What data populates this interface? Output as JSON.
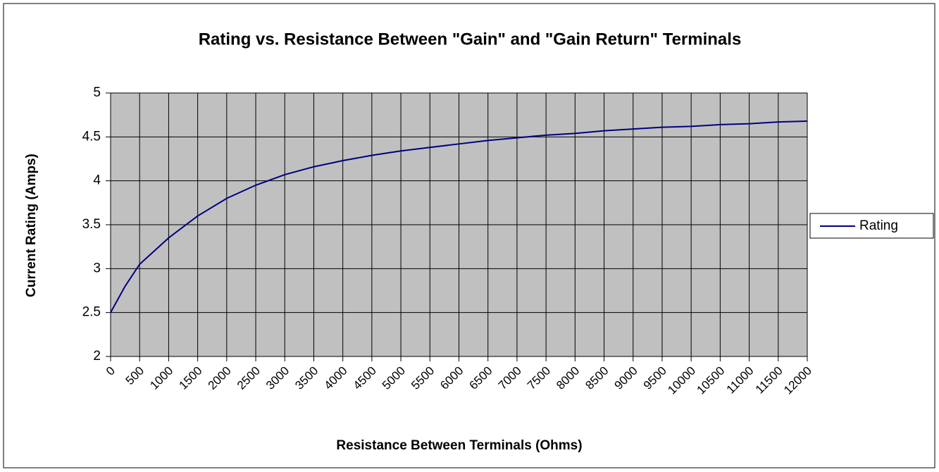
{
  "chart_data": {
    "type": "line",
    "title": "Rating vs. Resistance Between \"Gain\" and \"Gain Return\" Terminals",
    "xlabel": "Resistance Between Terminals (Ohms)",
    "ylabel": "Current Rating (Amps)",
    "x": [
      0,
      250,
      500,
      1000,
      1500,
      2000,
      2500,
      3000,
      3500,
      4000,
      4500,
      5000,
      5500,
      6000,
      6500,
      7000,
      7500,
      8000,
      8500,
      9000,
      9500,
      10000,
      10500,
      11000,
      11500,
      12000
    ],
    "series": [
      {
        "name": "Rating",
        "color": "#000080",
        "values": [
          2.5,
          2.8,
          3.05,
          3.35,
          3.6,
          3.8,
          3.95,
          4.07,
          4.16,
          4.23,
          4.29,
          4.34,
          4.38,
          4.42,
          4.46,
          4.49,
          4.52,
          4.54,
          4.57,
          4.59,
          4.61,
          4.62,
          4.64,
          4.65,
          4.67,
          4.68
        ]
      }
    ],
    "xlim": [
      0,
      12000
    ],
    "xticks": [
      0,
      500,
      1000,
      1500,
      2000,
      2500,
      3000,
      3500,
      4000,
      4500,
      5000,
      5500,
      6000,
      6500,
      7000,
      7500,
      8000,
      8500,
      9000,
      9500,
      10000,
      10500,
      11000,
      11500,
      12000
    ],
    "ylim": [
      2,
      5
    ],
    "yticks": [
      2,
      2.5,
      3,
      3.5,
      4,
      4.5,
      5
    ],
    "grid": true,
    "plot_background": "#c0c0c0",
    "legend": "right"
  }
}
